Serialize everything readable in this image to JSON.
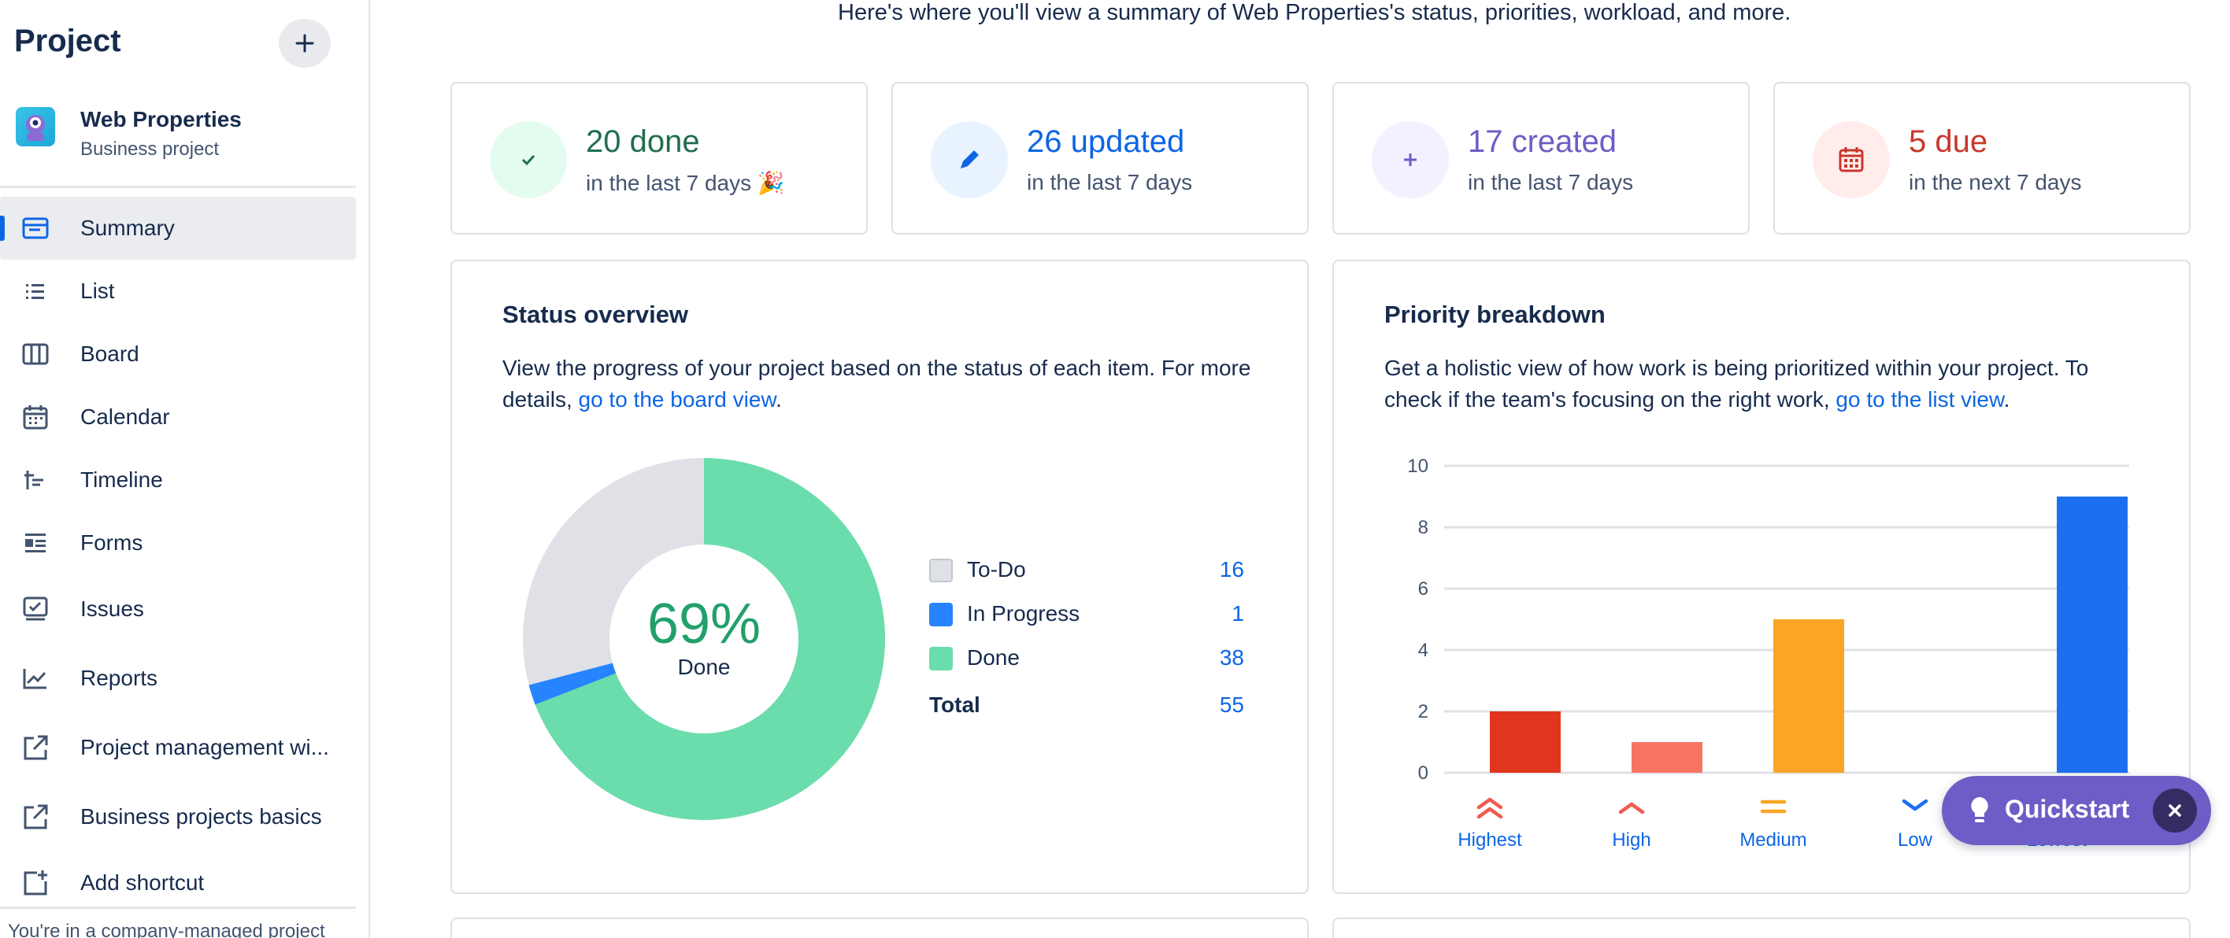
{
  "sidebar": {
    "heading": "Project",
    "project": {
      "name": "Web Properties",
      "type": "Business project"
    },
    "items": [
      {
        "label": "Summary",
        "icon": "summary-icon"
      },
      {
        "label": "List",
        "icon": "list-icon"
      },
      {
        "label": "Board",
        "icon": "board-icon"
      },
      {
        "label": "Calendar",
        "icon": "calendar-icon"
      },
      {
        "label": "Timeline",
        "icon": "timeline-icon"
      },
      {
        "label": "Forms",
        "icon": "forms-icon"
      },
      {
        "label": "Issues",
        "icon": "issues-icon"
      },
      {
        "label": "Reports",
        "icon": "reports-icon"
      },
      {
        "label": "Project management wi...",
        "icon": "external-link-icon"
      },
      {
        "label": "Business projects basics",
        "icon": "external-link-icon"
      },
      {
        "label": "Add shortcut",
        "icon": "add-shortcut-icon"
      }
    ],
    "footer": "You're in a company-managed project"
  },
  "intro": "Here's where you'll view a summary of Web Properties's status, priorities, workload, and more.",
  "stats": [
    {
      "value": "20 done",
      "sub": "in the last 7 days 🎉",
      "color": "#216e4e",
      "bg": "#e3fcef"
    },
    {
      "value": "26 updated",
      "sub": "in the last 7 days",
      "color": "#0c66e4",
      "bg": "#e9f2ff"
    },
    {
      "value": "17 created",
      "sub": "in the last 7 days",
      "color": "#6e5dc6",
      "bg": "#f3f0ff"
    },
    {
      "value": "5 due",
      "sub": "in the next 7 days",
      "color": "#c9372c",
      "bg": "#ffeceb"
    }
  ],
  "status": {
    "title": "Status overview",
    "desc_pre": "View the progress of your project based on the status of each item. For more details, ",
    "desc_link": "go to the board view",
    "desc_post": ".",
    "center_pct": "69%",
    "center_label": "Done",
    "legend": [
      {
        "name": "To-Do",
        "count": "16",
        "color": "#dfe1e6"
      },
      {
        "name": "In Progress",
        "count": "1",
        "color": "#2684ff"
      },
      {
        "name": "Done",
        "count": "38",
        "color": "#6bdcab"
      }
    ],
    "total_label": "Total",
    "total_count": "55"
  },
  "priority": {
    "title": "Priority breakdown",
    "desc_pre": "Get a holistic view of how work is being prioritized within your project. To check if the team's focusing on the right work, ",
    "desc_link": "go to the list view",
    "desc_post": "."
  },
  "chart_data": [
    {
      "type": "pie",
      "categories": [
        "To-Do",
        "In Progress",
        "Done"
      ],
      "values": [
        16,
        1,
        38
      ],
      "colors": [
        "#dfe1e6",
        "#2684ff",
        "#6bdcab"
      ]
    },
    {
      "type": "bar",
      "categories": [
        "Highest",
        "High",
        "Medium",
        "Low",
        "Lowest"
      ],
      "values": [
        2,
        1,
        5,
        0,
        9
      ],
      "colors": [
        "#e2351e",
        "#f87462",
        "#faa525",
        "#1d6ff2",
        "#1d6ff2"
      ],
      "ylim": [
        0,
        10
      ],
      "yticks": [
        0,
        2,
        4,
        6,
        8,
        10
      ],
      "grid": true
    }
  ],
  "quickstart": {
    "label": "Quickstart"
  }
}
